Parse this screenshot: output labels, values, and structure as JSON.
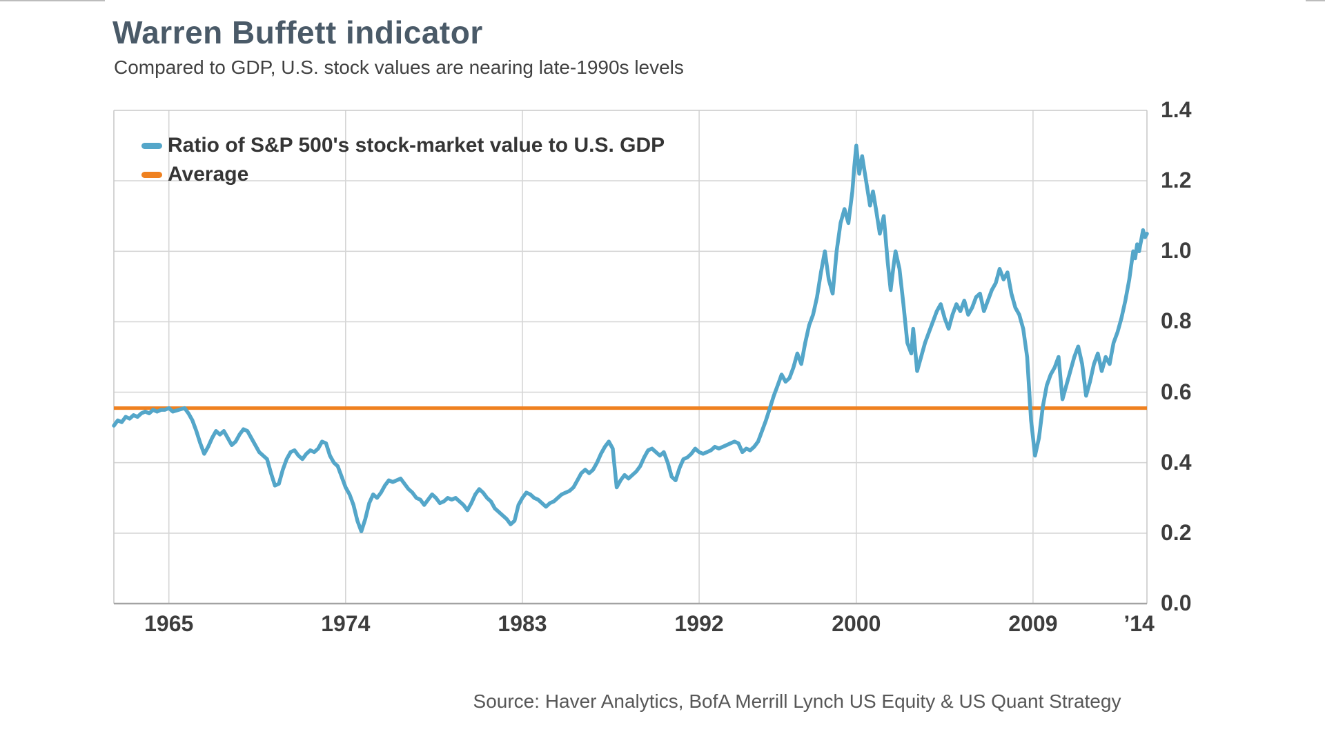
{
  "header": {
    "title": "Warren Buffett indicator",
    "subtitle": "Compared to GDP, U.S. stock values are nearing late-1990s levels"
  },
  "legend": {
    "items": [
      {
        "label": "Ratio of S&P 500's stock-market value to U.S. GDP",
        "color": "#54a6c9"
      },
      {
        "label": "Average",
        "color": "#ef8120"
      }
    ]
  },
  "footer": {
    "source": "Source: Haver Analytics, BofA Merrill Lynch US Equity & US Quant Strategy"
  },
  "chart_data": {
    "type": "line",
    "title": "Warren Buffett indicator",
    "subtitle": "Compared to GDP, U.S. stock values are nearing late-1990s levels",
    "xlabel": "",
    "ylabel": "",
    "x_domain": [
      1962.2,
      2014.8
    ],
    "y_domain": [
      0,
      1.4
    ],
    "grid": true,
    "legend_position": "top-left",
    "colors": {
      "ratio_line": "#54a6c9",
      "average_line": "#ef8120",
      "gridline": "#d6d6d6",
      "plot_border": "#c9c9c9",
      "bottom_axis": "#a3a3a3"
    },
    "y_ticks": [
      {
        "value": 0.0,
        "label": "0.0"
      },
      {
        "value": 0.2,
        "label": "0.2"
      },
      {
        "value": 0.4,
        "label": "0.4"
      },
      {
        "value": 0.6,
        "label": "0.6"
      },
      {
        "value": 0.8,
        "label": "0.8"
      },
      {
        "value": 1.0,
        "label": "1.0"
      },
      {
        "value": 1.2,
        "label": "1.2"
      },
      {
        "value": 1.4,
        "label": "1.4"
      }
    ],
    "x_ticks": [
      {
        "value": 1965,
        "label": "1965",
        "gridline": true
      },
      {
        "value": 1974,
        "label": "1974",
        "gridline": true
      },
      {
        "value": 1983,
        "label": "1983",
        "gridline": true
      },
      {
        "value": 1992,
        "label": "1992",
        "gridline": true
      },
      {
        "value": 2000,
        "label": "2000",
        "gridline": true
      },
      {
        "value": 2009,
        "label": "2009",
        "gridline": true
      },
      {
        "value": 2014.4,
        "label": "’14",
        "gridline": false
      }
    ],
    "average_value": 0.555,
    "series": [
      {
        "name": "Ratio of S&P 500's stock-market value to U.S. GDP",
        "color": "#54a6c9",
        "points": [
          [
            1962.2,
            0.505
          ],
          [
            1962.4,
            0.52
          ],
          [
            1962.6,
            0.515
          ],
          [
            1962.8,
            0.53
          ],
          [
            1963.0,
            0.525
          ],
          [
            1963.2,
            0.535
          ],
          [
            1963.4,
            0.53
          ],
          [
            1963.6,
            0.54
          ],
          [
            1963.8,
            0.545
          ],
          [
            1964.0,
            0.54
          ],
          [
            1964.2,
            0.55
          ],
          [
            1964.4,
            0.545
          ],
          [
            1964.6,
            0.55
          ],
          [
            1964.8,
            0.55
          ],
          [
            1965.0,
            0.555
          ],
          [
            1965.2,
            0.545
          ],
          [
            1965.5,
            0.55
          ],
          [
            1965.8,
            0.555
          ],
          [
            1966.0,
            0.54
          ],
          [
            1966.2,
            0.52
          ],
          [
            1966.4,
            0.49
          ],
          [
            1966.6,
            0.455
          ],
          [
            1966.8,
            0.425
          ],
          [
            1967.0,
            0.445
          ],
          [
            1967.2,
            0.47
          ],
          [
            1967.4,
            0.49
          ],
          [
            1967.6,
            0.48
          ],
          [
            1967.8,
            0.49
          ],
          [
            1968.0,
            0.47
          ],
          [
            1968.2,
            0.45
          ],
          [
            1968.4,
            0.46
          ],
          [
            1968.6,
            0.48
          ],
          [
            1968.8,
            0.495
          ],
          [
            1969.0,
            0.49
          ],
          [
            1969.2,
            0.47
          ],
          [
            1969.4,
            0.45
          ],
          [
            1969.6,
            0.43
          ],
          [
            1969.8,
            0.42
          ],
          [
            1970.0,
            0.41
          ],
          [
            1970.2,
            0.37
          ],
          [
            1970.4,
            0.335
          ],
          [
            1970.6,
            0.34
          ],
          [
            1970.8,
            0.38
          ],
          [
            1971.0,
            0.41
          ],
          [
            1971.2,
            0.43
          ],
          [
            1971.4,
            0.435
          ],
          [
            1971.6,
            0.42
          ],
          [
            1971.8,
            0.41
          ],
          [
            1972.0,
            0.425
          ],
          [
            1972.2,
            0.435
          ],
          [
            1972.4,
            0.43
          ],
          [
            1972.6,
            0.44
          ],
          [
            1972.8,
            0.46
          ],
          [
            1973.0,
            0.455
          ],
          [
            1973.2,
            0.42
          ],
          [
            1973.4,
            0.4
          ],
          [
            1973.6,
            0.39
          ],
          [
            1973.8,
            0.36
          ],
          [
            1974.0,
            0.33
          ],
          [
            1974.2,
            0.31
          ],
          [
            1974.4,
            0.28
          ],
          [
            1974.6,
            0.235
          ],
          [
            1974.8,
            0.205
          ],
          [
            1975.0,
            0.24
          ],
          [
            1975.2,
            0.285
          ],
          [
            1975.4,
            0.31
          ],
          [
            1975.6,
            0.3
          ],
          [
            1975.8,
            0.315
          ],
          [
            1976.0,
            0.335
          ],
          [
            1976.2,
            0.35
          ],
          [
            1976.4,
            0.345
          ],
          [
            1976.6,
            0.35
          ],
          [
            1976.8,
            0.355
          ],
          [
            1977.0,
            0.34
          ],
          [
            1977.2,
            0.325
          ],
          [
            1977.4,
            0.315
          ],
          [
            1977.6,
            0.3
          ],
          [
            1977.8,
            0.295
          ],
          [
            1978.0,
            0.28
          ],
          [
            1978.2,
            0.295
          ],
          [
            1978.4,
            0.31
          ],
          [
            1978.6,
            0.3
          ],
          [
            1978.8,
            0.285
          ],
          [
            1979.0,
            0.29
          ],
          [
            1979.2,
            0.3
          ],
          [
            1979.4,
            0.295
          ],
          [
            1979.6,
            0.3
          ],
          [
            1979.8,
            0.29
          ],
          [
            1980.0,
            0.28
          ],
          [
            1980.2,
            0.265
          ],
          [
            1980.4,
            0.285
          ],
          [
            1980.6,
            0.31
          ],
          [
            1980.8,
            0.325
          ],
          [
            1981.0,
            0.315
          ],
          [
            1981.2,
            0.3
          ],
          [
            1981.4,
            0.29
          ],
          [
            1981.6,
            0.27
          ],
          [
            1981.8,
            0.26
          ],
          [
            1982.0,
            0.25
          ],
          [
            1982.2,
            0.24
          ],
          [
            1982.4,
            0.225
          ],
          [
            1982.6,
            0.235
          ],
          [
            1982.8,
            0.28
          ],
          [
            1983.0,
            0.3
          ],
          [
            1983.2,
            0.315
          ],
          [
            1983.4,
            0.31
          ],
          [
            1983.6,
            0.3
          ],
          [
            1983.8,
            0.295
          ],
          [
            1984.0,
            0.285
          ],
          [
            1984.2,
            0.275
          ],
          [
            1984.4,
            0.285
          ],
          [
            1984.6,
            0.29
          ],
          [
            1984.8,
            0.3
          ],
          [
            1985.0,
            0.31
          ],
          [
            1985.2,
            0.315
          ],
          [
            1985.4,
            0.32
          ],
          [
            1985.6,
            0.33
          ],
          [
            1985.8,
            0.35
          ],
          [
            1986.0,
            0.37
          ],
          [
            1986.2,
            0.38
          ],
          [
            1986.4,
            0.37
          ],
          [
            1986.6,
            0.38
          ],
          [
            1986.8,
            0.4
          ],
          [
            1987.0,
            0.425
          ],
          [
            1987.2,
            0.445
          ],
          [
            1987.4,
            0.46
          ],
          [
            1987.6,
            0.44
          ],
          [
            1987.8,
            0.33
          ],
          [
            1988.0,
            0.35
          ],
          [
            1988.2,
            0.365
          ],
          [
            1988.4,
            0.355
          ],
          [
            1988.6,
            0.365
          ],
          [
            1988.8,
            0.375
          ],
          [
            1989.0,
            0.39
          ],
          [
            1989.2,
            0.415
          ],
          [
            1989.4,
            0.435
          ],
          [
            1989.6,
            0.44
          ],
          [
            1989.8,
            0.43
          ],
          [
            1990.0,
            0.42
          ],
          [
            1990.2,
            0.43
          ],
          [
            1990.4,
            0.4
          ],
          [
            1990.6,
            0.36
          ],
          [
            1990.8,
            0.35
          ],
          [
            1991.0,
            0.385
          ],
          [
            1991.2,
            0.41
          ],
          [
            1991.4,
            0.415
          ],
          [
            1991.6,
            0.425
          ],
          [
            1991.8,
            0.44
          ],
          [
            1992.0,
            0.43
          ],
          [
            1992.2,
            0.425
          ],
          [
            1992.4,
            0.43
          ],
          [
            1992.6,
            0.435
          ],
          [
            1992.8,
            0.445
          ],
          [
            1993.0,
            0.44
          ],
          [
            1993.2,
            0.445
          ],
          [
            1993.4,
            0.45
          ],
          [
            1993.6,
            0.455
          ],
          [
            1993.8,
            0.46
          ],
          [
            1994.0,
            0.455
          ],
          [
            1994.2,
            0.43
          ],
          [
            1994.4,
            0.44
          ],
          [
            1994.6,
            0.435
          ],
          [
            1994.8,
            0.445
          ],
          [
            1995.0,
            0.46
          ],
          [
            1995.2,
            0.49
          ],
          [
            1995.4,
            0.52
          ],
          [
            1995.6,
            0.555
          ],
          [
            1995.8,
            0.59
          ],
          [
            1996.0,
            0.62
          ],
          [
            1996.2,
            0.65
          ],
          [
            1996.4,
            0.63
          ],
          [
            1996.6,
            0.64
          ],
          [
            1996.8,
            0.67
          ],
          [
            1997.0,
            0.71
          ],
          [
            1997.2,
            0.68
          ],
          [
            1997.4,
            0.74
          ],
          [
            1997.6,
            0.79
          ],
          [
            1997.8,
            0.82
          ],
          [
            1998.0,
            0.87
          ],
          [
            1998.2,
            0.94
          ],
          [
            1998.4,
            1.0
          ],
          [
            1998.6,
            0.92
          ],
          [
            1998.8,
            0.88
          ],
          [
            1999.0,
            1.0
          ],
          [
            1999.2,
            1.08
          ],
          [
            1999.4,
            1.12
          ],
          [
            1999.6,
            1.08
          ],
          [
            1999.8,
            1.17
          ],
          [
            1999.9,
            1.24
          ],
          [
            2000.0,
            1.3
          ],
          [
            2000.15,
            1.22
          ],
          [
            2000.3,
            1.27
          ],
          [
            2000.5,
            1.2
          ],
          [
            2000.7,
            1.13
          ],
          [
            2000.85,
            1.17
          ],
          [
            2001.0,
            1.12
          ],
          [
            2001.2,
            1.05
          ],
          [
            2001.4,
            1.1
          ],
          [
            2001.6,
            0.97
          ],
          [
            2001.75,
            0.89
          ],
          [
            2001.9,
            0.96
          ],
          [
            2002.0,
            1.0
          ],
          [
            2002.2,
            0.95
          ],
          [
            2002.4,
            0.85
          ],
          [
            2002.6,
            0.74
          ],
          [
            2002.8,
            0.71
          ],
          [
            2002.9,
            0.78
          ],
          [
            2003.1,
            0.66
          ],
          [
            2003.3,
            0.7
          ],
          [
            2003.5,
            0.74
          ],
          [
            2003.7,
            0.77
          ],
          [
            2003.9,
            0.8
          ],
          [
            2004.1,
            0.83
          ],
          [
            2004.3,
            0.85
          ],
          [
            2004.5,
            0.81
          ],
          [
            2004.7,
            0.78
          ],
          [
            2004.9,
            0.82
          ],
          [
            2005.1,
            0.85
          ],
          [
            2005.3,
            0.83
          ],
          [
            2005.5,
            0.86
          ],
          [
            2005.7,
            0.82
          ],
          [
            2005.9,
            0.84
          ],
          [
            2006.1,
            0.87
          ],
          [
            2006.3,
            0.88
          ],
          [
            2006.5,
            0.83
          ],
          [
            2006.7,
            0.86
          ],
          [
            2006.9,
            0.89
          ],
          [
            2007.1,
            0.91
          ],
          [
            2007.3,
            0.95
          ],
          [
            2007.5,
            0.92
          ],
          [
            2007.7,
            0.94
          ],
          [
            2007.9,
            0.88
          ],
          [
            2008.1,
            0.84
          ],
          [
            2008.3,
            0.82
          ],
          [
            2008.5,
            0.78
          ],
          [
            2008.7,
            0.7
          ],
          [
            2008.9,
            0.52
          ],
          [
            2009.1,
            0.42
          ],
          [
            2009.3,
            0.47
          ],
          [
            2009.5,
            0.56
          ],
          [
            2009.7,
            0.62
          ],
          [
            2009.9,
            0.65
          ],
          [
            2010.1,
            0.67
          ],
          [
            2010.3,
            0.7
          ],
          [
            2010.5,
            0.58
          ],
          [
            2010.7,
            0.62
          ],
          [
            2010.9,
            0.66
          ],
          [
            2011.1,
            0.7
          ],
          [
            2011.3,
            0.73
          ],
          [
            2011.5,
            0.68
          ],
          [
            2011.7,
            0.59
          ],
          [
            2011.9,
            0.63
          ],
          [
            2012.1,
            0.68
          ],
          [
            2012.3,
            0.71
          ],
          [
            2012.5,
            0.66
          ],
          [
            2012.7,
            0.7
          ],
          [
            2012.9,
            0.68
          ],
          [
            2013.1,
            0.74
          ],
          [
            2013.3,
            0.77
          ],
          [
            2013.5,
            0.81
          ],
          [
            2013.7,
            0.86
          ],
          [
            2013.9,
            0.92
          ],
          [
            2014.0,
            0.96
          ],
          [
            2014.1,
            1.0
          ],
          [
            2014.2,
            0.98
          ],
          [
            2014.3,
            1.02
          ],
          [
            2014.4,
            1.0
          ],
          [
            2014.5,
            1.03
          ],
          [
            2014.6,
            1.06
          ],
          [
            2014.7,
            1.04
          ],
          [
            2014.8,
            1.05
          ]
        ]
      },
      {
        "name": "Average",
        "type": "hline",
        "color": "#ef8120",
        "value": 0.555
      }
    ]
  }
}
